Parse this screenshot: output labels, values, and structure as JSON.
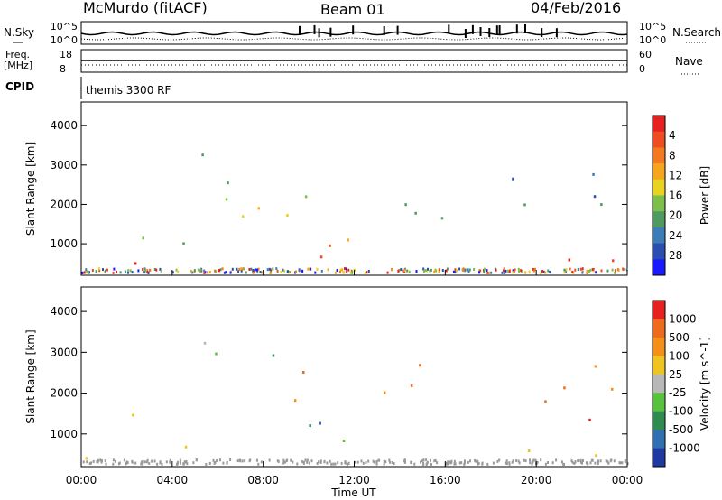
{
  "header": {
    "station": "McMurdo (fitACF)",
    "beam": "Beam 01",
    "date": "04/Feb/2016"
  },
  "chart_data": {
    "type": "heatmap",
    "title": "McMurdo (fitACF)",
    "xlabel": "Time UT",
    "x_ticks": [
      "00:00",
      "04:00",
      "08:00",
      "12:00",
      "16:00",
      "20:00",
      "00:00"
    ],
    "xlim_hours": [
      0,
      24
    ],
    "top_panels": {
      "noise": {
        "left_label": "N.Sky",
        "right_label": "N.Search",
        "left_ticks": [
          "10^5",
          "10^0"
        ],
        "right_ticks": [
          "10^5",
          "10^0"
        ]
      },
      "freq": {
        "left_label": "Freq.",
        "left_unit": "[MHz]",
        "right_label": "Nave",
        "left_ticks": [
          "18",
          "8"
        ],
        "right_ticks": [
          "60",
          "0"
        ]
      },
      "cpid": {
        "label": "CPID",
        "program": "themis 3300 RF"
      }
    },
    "panels": [
      {
        "name": "Power",
        "ylabel": "Slant Range [km]",
        "yticks": [
          1000,
          2000,
          3000,
          4000
        ],
        "ylim": [
          200,
          4600
        ],
        "colorbar_label": "Power [dB]",
        "colorbar_ticks": [
          "4",
          "8",
          "12",
          "16",
          "20",
          "24",
          "28"
        ],
        "colorbar_colors": [
          "#1a1aff",
          "#2a4fb0",
          "#3c7db8",
          "#4f9a5e",
          "#7cbf4a",
          "#e8d321",
          "#f4a71c",
          "#f2791f",
          "#ee4d22",
          "#e82020"
        ],
        "scatter_regions": [
          {
            "t": [
              0.0,
              2.4
            ],
            "r": [
              300,
              800
            ],
            "level": 9
          },
          {
            "t": [
              2.0,
              5.0
            ],
            "r": [
              700,
              1800
            ],
            "level": 3
          },
          {
            "t": [
              3.6,
              5.6
            ],
            "r": [
              2800,
              3500
            ],
            "level": 4
          },
          {
            "t": [
              5.0,
              8.5
            ],
            "r": [
              1600,
              3000
            ],
            "level": 4
          },
          {
            "t": [
              7.0,
              10.0
            ],
            "r": [
              1800,
              2800
            ],
            "level": 5
          },
          {
            "t": [
              9.0,
              11.5
            ],
            "r": [
              1500,
              2400
            ],
            "level": 6
          },
          {
            "t": [
              8.0,
              14.0
            ],
            "r": [
              500,
              1400
            ],
            "level": 7
          },
          {
            "t": [
              12.0,
              16.0
            ],
            "r": [
              1400,
              2800
            ],
            "level": 3
          },
          {
            "t": [
              16.8,
              24.0
            ],
            "r": [
              300,
              800
            ],
            "level": 9
          },
          {
            "t": [
              18.5,
              23.5
            ],
            "r": [
              1000,
              2800
            ],
            "level": 2
          }
        ]
      },
      {
        "name": "Velocity",
        "ylabel": "Slant Range [km]",
        "yticks": [
          1000,
          2000,
          3000,
          4000
        ],
        "ylim": [
          200,
          4600
        ],
        "colorbar_label": "Velocity [m s^-1]",
        "colorbar_ticks": [
          "1000",
          "500",
          "100",
          "25",
          "-25",
          "-100",
          "-500",
          "-1000"
        ],
        "colorbar_colors": [
          "#1e3aa0",
          "#2f6fb2",
          "#2f8b50",
          "#58c23c",
          "#b8b8b8",
          "#f0c420",
          "#f2901a",
          "#ee6a1c",
          "#e82020"
        ],
        "scatter_regions": [
          {
            "t": [
              0.0,
              2.4
            ],
            "r": [
              300,
              800
            ],
            "level": 5
          },
          {
            "t": [
              2.0,
              5.0
            ],
            "r": [
              700,
              1600
            ],
            "level": 6
          },
          {
            "t": [
              3.6,
              5.6
            ],
            "r": [
              2800,
              3500
            ],
            "level": 4
          },
          {
            "t": [
              5.0,
              8.5
            ],
            "r": [
              1800,
              3000
            ],
            "level": 2
          },
          {
            "t": [
              7.0,
              10.0
            ],
            "r": [
              1800,
              2800
            ],
            "level": 6
          },
          {
            "t": [
              9.5,
              13.0
            ],
            "r": [
              500,
              1800
            ],
            "level": 2
          },
          {
            "t": [
              12.0,
              16.0
            ],
            "r": [
              1400,
              2800
            ],
            "level": 6
          },
          {
            "t": [
              16.8,
              24.0
            ],
            "r": [
              300,
              800
            ],
            "level": 6
          },
          {
            "t": [
              18.5,
              23.5
            ],
            "r": [
              1000,
              2800
            ],
            "level": 7
          }
        ]
      }
    ]
  }
}
